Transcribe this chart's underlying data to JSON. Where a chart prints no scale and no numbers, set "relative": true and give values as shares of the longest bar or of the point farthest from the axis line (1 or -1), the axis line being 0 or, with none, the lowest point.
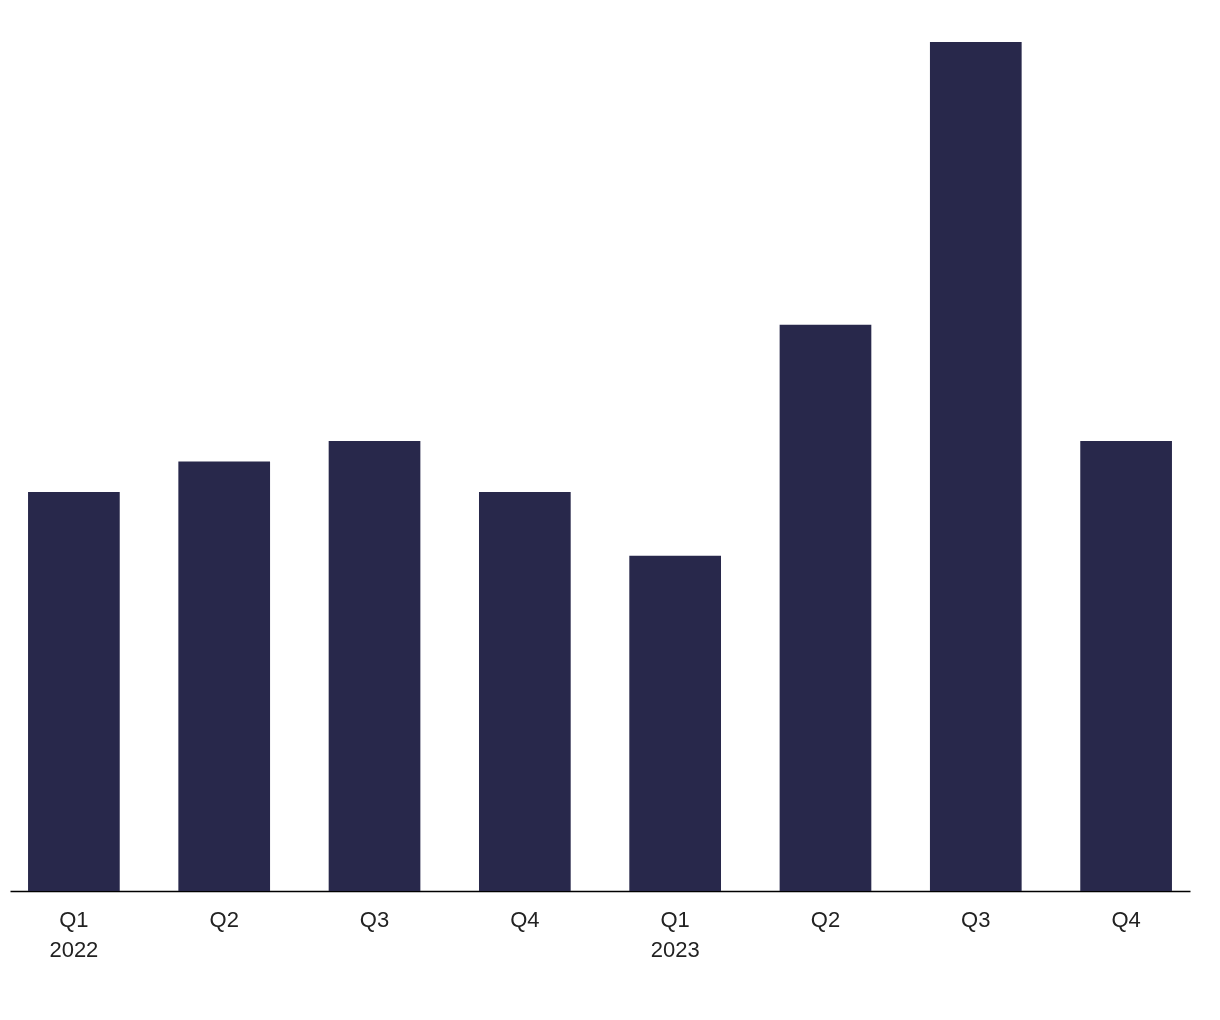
{
  "chart_data": {
    "type": "bar",
    "relative": true,
    "categories": [
      "Q1\n2022",
      "Q2",
      "Q3",
      "Q4",
      "Q1\n2023",
      "Q2",
      "Q3",
      "Q4"
    ],
    "values": [
      0.47,
      0.506,
      0.53,
      0.47,
      0.395,
      0.667,
      1,
      0.53
    ],
    "color": "#28284b",
    "grid": false
  }
}
